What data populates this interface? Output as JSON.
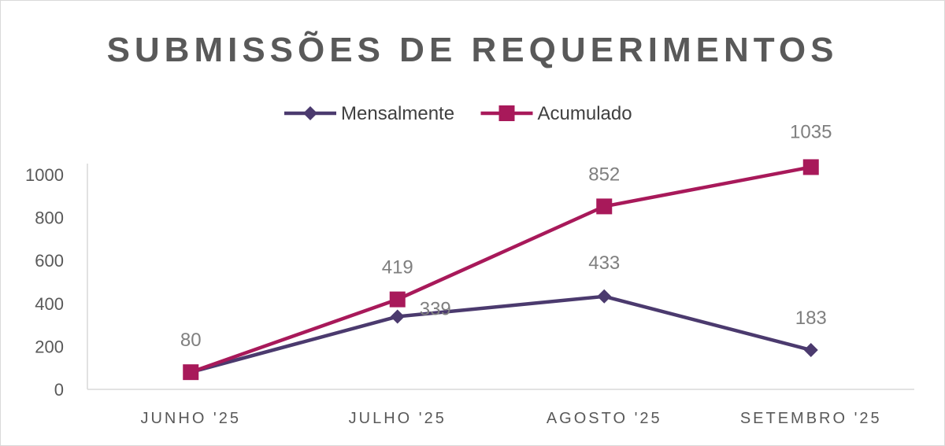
{
  "chart_data": {
    "type": "line",
    "title": "SUBMISSÕES DE REQUERIMENTOS",
    "categories": [
      "JUNHO '25",
      "JULHO '25",
      "AGOSTO '25",
      "SETEMBRO '25"
    ],
    "series": [
      {
        "name": "Mensalmente",
        "values": [
          80,
          339,
          433,
          183
        ],
        "color": "#4b3a6e",
        "marker": "diamond",
        "labels": [
          "",
          "339",
          "433",
          "183"
        ]
      },
      {
        "name": "Acumulado",
        "values": [
          80,
          419,
          852,
          1035
        ],
        "color": "#a8195a",
        "marker": "square",
        "labels": [
          "80",
          "419",
          "852",
          "1035"
        ]
      }
    ],
    "ylim": [
      0,
      1000
    ],
    "yticks": [
      0,
      200,
      400,
      600,
      800,
      1000
    ],
    "grid": false,
    "legend": "top"
  }
}
